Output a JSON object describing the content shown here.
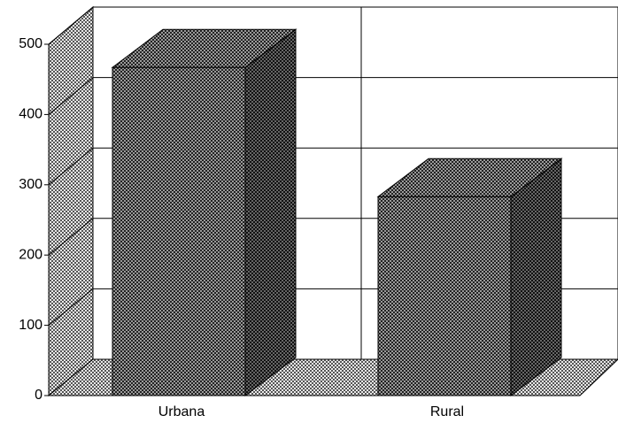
{
  "chart_data": {
    "type": "bar3d",
    "categories": [
      "Urbana",
      "Rural"
    ],
    "values": [
      467,
      283
    ],
    "ylim": [
      0,
      500
    ],
    "yticks": [
      0,
      100,
      200,
      300,
      400,
      500
    ],
    "grid": true
  }
}
